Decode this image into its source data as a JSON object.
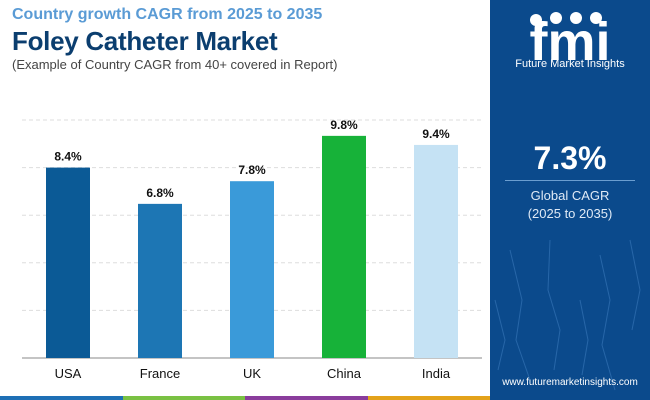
{
  "header": {
    "subtitle": "Country growth CAGR from 2025 to 2035",
    "title": "Foley Catheter Market",
    "note": "(Example of Country CAGR from 40+ covered in Report)"
  },
  "chart_data": {
    "type": "bar",
    "categories": [
      "USA",
      "France",
      "UK",
      "China",
      "India"
    ],
    "values": [
      8.4,
      6.8,
      7.8,
      9.8,
      9.4
    ],
    "value_labels": [
      "8.4%",
      "6.8%",
      "7.8%",
      "9.8%",
      "9.4%"
    ],
    "colors": [
      "#0b5a96",
      "#1d76b4",
      "#3a9ad9",
      "#17b239",
      "#c5e2f4"
    ],
    "ylim": [
      0,
      10.5
    ],
    "grid": true,
    "legend": "none"
  },
  "sidebar": {
    "logo_text": "fmi",
    "logo_subtitle": "Future Market Insights",
    "global_cagr_value": "7.3%",
    "global_cagr_label": "Global CAGR",
    "global_cagr_period": "(2025 to 2035)",
    "website": "www.futuremarketinsights.com",
    "bg_color": "#0b4a8c"
  },
  "footer_strip_colors": [
    "#1e6fb5",
    "#7ac143",
    "#8a3d9c",
    "#e3a21a"
  ]
}
